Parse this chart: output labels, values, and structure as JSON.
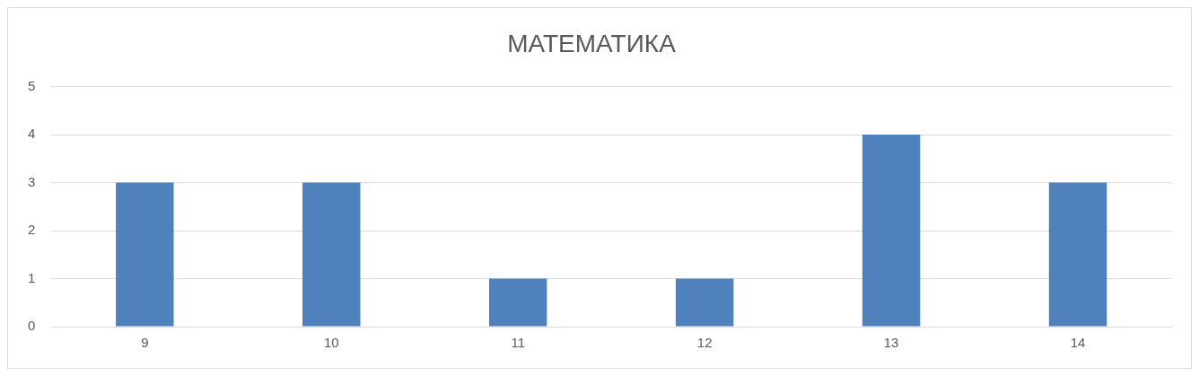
{
  "chart_data": {
    "type": "bar",
    "title": "МАТЕМАТИКА",
    "categories": [
      "9",
      "10",
      "11",
      "12",
      "13",
      "14"
    ],
    "values": [
      3,
      3,
      1,
      1,
      4,
      3
    ],
    "color": "#4f81bd",
    "ylim": [
      0,
      5
    ],
    "yticks": [
      0,
      1,
      2,
      3,
      4,
      5
    ],
    "grid": "y",
    "legend": false
  }
}
